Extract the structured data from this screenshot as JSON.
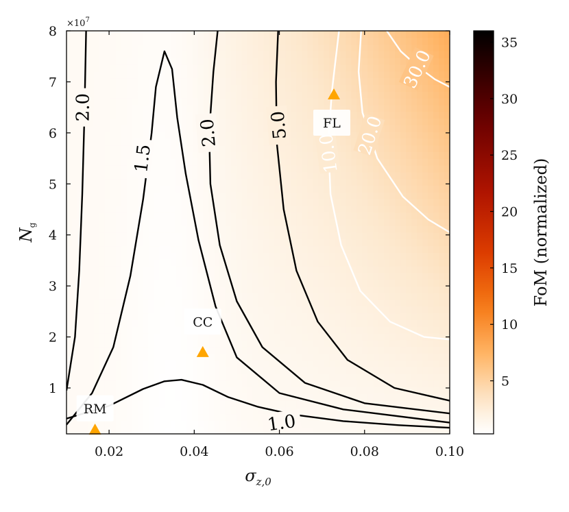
{
  "chart_data": {
    "type": "heatmap",
    "title": "",
    "xlabel": "σ",
    "xlabel_sub": "z,0",
    "ylabel": "N",
    "ylabel_sub": "g",
    "y_multiplier": "×10",
    "y_multiplier_exp": "7",
    "xlim": [
      0.01,
      0.1
    ],
    "ylim": [
      1000000,
      80000000
    ],
    "x_ticks": [
      0.02,
      0.04,
      0.06,
      0.08,
      0.1
    ],
    "x_tick_labels": [
      "0.02",
      "0.04",
      "0.06",
      "0.08",
      "0.10"
    ],
    "y_ticks": [
      10000000,
      20000000,
      30000000,
      40000000,
      50000000,
      60000000,
      70000000,
      80000000
    ],
    "y_tick_labels": [
      "1",
      "2",
      "3",
      "4",
      "5",
      "6",
      "7",
      "8"
    ],
    "colormap": "gist_heat_r",
    "colorbar": {
      "label": "FoM (normalized)",
      "range": [
        0.3,
        36
      ],
      "ticks": [
        5,
        10,
        15,
        20,
        25,
        30,
        35
      ],
      "tick_labels": [
        "5",
        "10",
        "15",
        "20",
        "25",
        "30",
        "35"
      ]
    },
    "contours": [
      {
        "level": 1.0,
        "color": "#000000",
        "labels": [
          {
            "text": "1.0",
            "x": 0.0605,
            "y": 3200000,
            "angle": -8
          }
        ],
        "points": [
          [
            0.01,
            4000000
          ],
          [
            0.02,
            6500000
          ],
          [
            0.028,
            9800000
          ],
          [
            0.033,
            11300000
          ],
          [
            0.037,
            11600000
          ],
          [
            0.042,
            10600000
          ],
          [
            0.048,
            8200000
          ],
          [
            0.055,
            6300000
          ],
          [
            0.063,
            4800000
          ],
          [
            0.075,
            3500000
          ],
          [
            0.088,
            2700000
          ],
          [
            0.1,
            2200000
          ]
        ]
      },
      {
        "level": 1.5,
        "color": "#000000",
        "labels": [
          {
            "text": "1.5",
            "x": 0.0278,
            "y": 55000000,
            "angle": -83
          }
        ],
        "points": [
          [
            0.01,
            2800000
          ],
          [
            0.016,
            9000000
          ],
          [
            0.021,
            18000000
          ],
          [
            0.025,
            32000000
          ],
          [
            0.028,
            47000000
          ],
          [
            0.03,
            60000000
          ],
          [
            0.031,
            69000000
          ],
          [
            0.033,
            76000000
          ],
          [
            0.0348,
            72500000
          ],
          [
            0.036,
            63000000
          ],
          [
            0.038,
            52000000
          ],
          [
            0.041,
            39000000
          ],
          [
            0.045,
            26000000
          ],
          [
            0.05,
            16000000
          ],
          [
            0.06,
            9000000
          ],
          [
            0.075,
            5800000
          ],
          [
            0.1,
            3200000
          ]
        ]
      },
      {
        "level": 2.0,
        "color": "#000000",
        "labels": [
          {
            "text": "2.0",
            "x": 0.0138,
            "y": 65000000,
            "angle": -90
          }
        ],
        "points": [
          [
            0.01,
            9500000
          ],
          [
            0.012,
            20000000
          ],
          [
            0.013,
            33000000
          ],
          [
            0.0137,
            48000000
          ],
          [
            0.0142,
            63000000
          ],
          [
            0.0146,
            80000000
          ]
        ]
      },
      {
        "level": 2.0,
        "color": "#000000",
        "labels": [
          {
            "text": "2.0",
            "x": 0.0432,
            "y": 60000000,
            "angle": -95
          }
        ],
        "points": [
          [
            0.0455,
            80000000
          ],
          [
            0.0445,
            72000000
          ],
          [
            0.0435,
            60000000
          ],
          [
            0.0438,
            50000000
          ],
          [
            0.046,
            38000000
          ],
          [
            0.05,
            27000000
          ],
          [
            0.056,
            18000000
          ],
          [
            0.066,
            11000000
          ],
          [
            0.08,
            7000000
          ],
          [
            0.1,
            5000000
          ]
        ]
      },
      {
        "level": 5.0,
        "color": "#000000",
        "labels": [
          {
            "text": "5.0",
            "x": 0.0598,
            "y": 61500000,
            "angle": -95
          }
        ],
        "points": [
          [
            0.0597,
            80000000
          ],
          [
            0.0592,
            70000000
          ],
          [
            0.0594,
            58000000
          ],
          [
            0.061,
            45000000
          ],
          [
            0.064,
            33000000
          ],
          [
            0.069,
            23000000
          ],
          [
            0.076,
            15500000
          ],
          [
            0.087,
            10000000
          ],
          [
            0.1,
            7500000
          ]
        ]
      },
      {
        "level": 10.0,
        "color": "#ffffff",
        "labels": [
          {
            "text": "10.0",
            "x": 0.0715,
            "y": 56000000,
            "angle": -98
          }
        ],
        "points": [
          [
            0.074,
            80000000
          ],
          [
            0.0723,
            68000000
          ],
          [
            0.0715,
            58000000
          ],
          [
            0.072,
            48000000
          ],
          [
            0.0745,
            38000000
          ],
          [
            0.079,
            29000000
          ],
          [
            0.086,
            23000000
          ],
          [
            0.094,
            20000000
          ],
          [
            0.1,
            19500000
          ]
        ]
      },
      {
        "level": 20.0,
        "color": "#ffffff",
        "labels": [
          {
            "text": "20.0",
            "x": 0.0812,
            "y": 59500000,
            "angle": -72
          }
        ],
        "points": [
          [
            0.0792,
            80000000
          ],
          [
            0.0786,
            72000000
          ],
          [
            0.0795,
            64000000
          ],
          [
            0.083,
            55000000
          ],
          [
            0.089,
            47500000
          ],
          [
            0.095,
            43000000
          ],
          [
            0.1,
            40500000
          ]
        ]
      },
      {
        "level": 30.0,
        "color": "#ffffff",
        "labels": [
          {
            "text": "30.0",
            "x": 0.0923,
            "y": 72500000,
            "angle": -65
          }
        ],
        "points": [
          [
            0.0852,
            80000000
          ],
          [
            0.0885,
            76000000
          ],
          [
            0.0925,
            73000000
          ],
          [
            0.0965,
            70500000
          ],
          [
            0.1,
            69000000
          ]
        ]
      }
    ],
    "markers": [
      {
        "label": "RM",
        "x": 0.0167,
        "y": 1800000,
        "label_x": 0.0167,
        "label_y": 6000000,
        "color": "#FFA500"
      },
      {
        "label": "CC",
        "x": 0.042,
        "y": 17000000,
        "label_x": 0.042,
        "label_y": 23000000,
        "color": "#FFA500"
      },
      {
        "label": "FL",
        "x": 0.0728,
        "y": 67500000,
        "label_x": 0.0723,
        "label_y": 62000000,
        "color": "#FFA500"
      }
    ]
  }
}
